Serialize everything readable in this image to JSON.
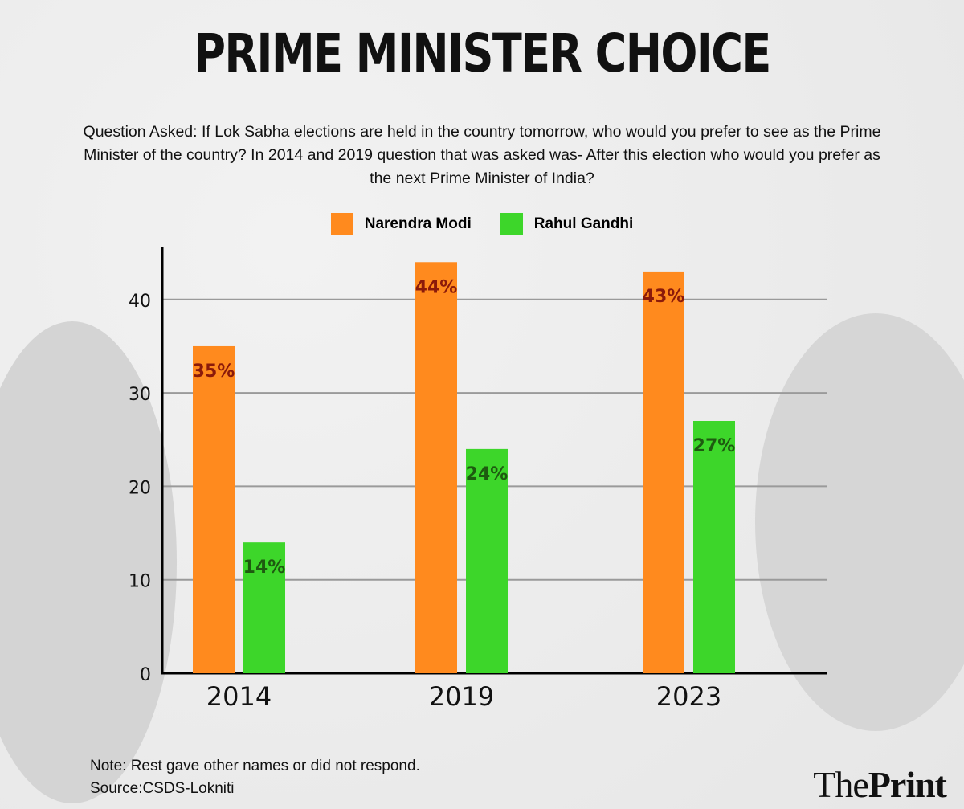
{
  "title": "PRIME MINISTER CHOICE",
  "question": "Question Asked: If Lok Sabha elections are held in the country tomorrow, who would you prefer to see as the Prime Minister of the country? In 2014 and 2019 question that was asked was- After this election who would you prefer as the next Prime Minister of India?",
  "note": "Note: Rest gave other names or did not respond.",
  "source": "Source:CSDS-Lokniti",
  "logo": {
    "light": "The",
    "bold": "Print"
  },
  "chart_data": {
    "type": "bar",
    "categories": [
      "2014",
      "2019",
      "2023"
    ],
    "series": [
      {
        "name": "Narendra Modi",
        "values": [
          35,
          44,
          43
        ],
        "labels": [
          "35%",
          "44%",
          "43%"
        ],
        "color": "#ff8a1e",
        "label_color": "#8b1a0a"
      },
      {
        "name": "Rahul Gandhi",
        "values": [
          14,
          24,
          27
        ],
        "labels": [
          "14%",
          "24%",
          "27%"
        ],
        "color": "#3dd62a",
        "label_color": "#1e5a10"
      }
    ],
    "yticks": [
      0,
      10,
      20,
      30,
      40
    ],
    "ylim": [
      0,
      45
    ],
    "grid": true,
    "legend": "top-center"
  }
}
